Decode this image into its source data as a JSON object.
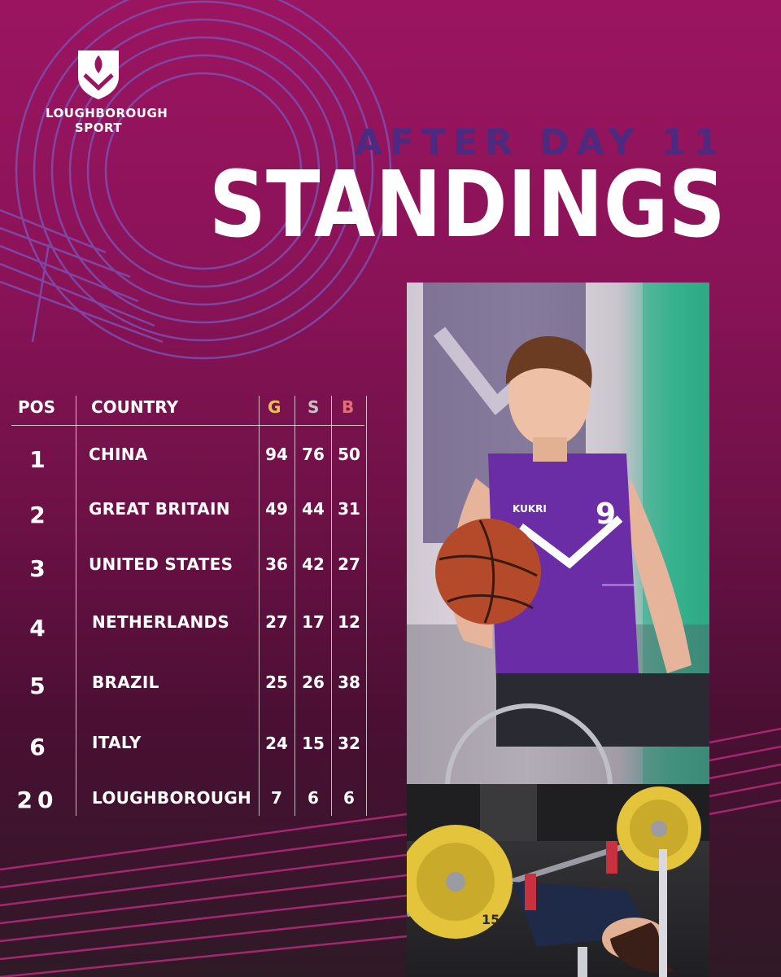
{
  "brand": {
    "line1": "LOUGHBOROUGH",
    "line2": "SPORT"
  },
  "header": {
    "subtitle": "AFTER DAY 11",
    "title": "STANDINGS"
  },
  "colors": {
    "gold": "#e8c05a",
    "silver": "#c9c0c7",
    "bronze": "#e0707a",
    "subtitle": "#4b2a80",
    "track_lines": "#7d4fb0"
  },
  "table": {
    "headers": {
      "pos": "POS",
      "country": "COUNTRY",
      "gold": "G",
      "silver": "S",
      "bronze": "B"
    },
    "rows": [
      {
        "pos": "1",
        "country": "CHINA",
        "g": "94",
        "s": "76",
        "b": "50"
      },
      {
        "pos": "2",
        "country": "GREAT BRITAIN",
        "g": "49",
        "s": "44",
        "b": "31"
      },
      {
        "pos": "3",
        "country": "UNITED STATES",
        "g": "36",
        "s": "42",
        "b": "27"
      },
      {
        "pos": "4",
        "country": "NETHERLANDS",
        "g": "27",
        "s": "17",
        "b": "12"
      },
      {
        "pos": "5",
        "country": "BRAZIL",
        "g": "25",
        "s": "26",
        "b": "38"
      },
      {
        "pos": "6",
        "country": "ITALY",
        "g": "24",
        "s": "15",
        "b": "32"
      },
      {
        "pos": "20",
        "country": "LOUGHBOROUGH",
        "g": "7",
        "s": "6",
        "b": "6"
      }
    ]
  },
  "photos": {
    "top_jersey_number": "9",
    "top_brand": "KUKRI",
    "bottom_plate_number": "15"
  }
}
